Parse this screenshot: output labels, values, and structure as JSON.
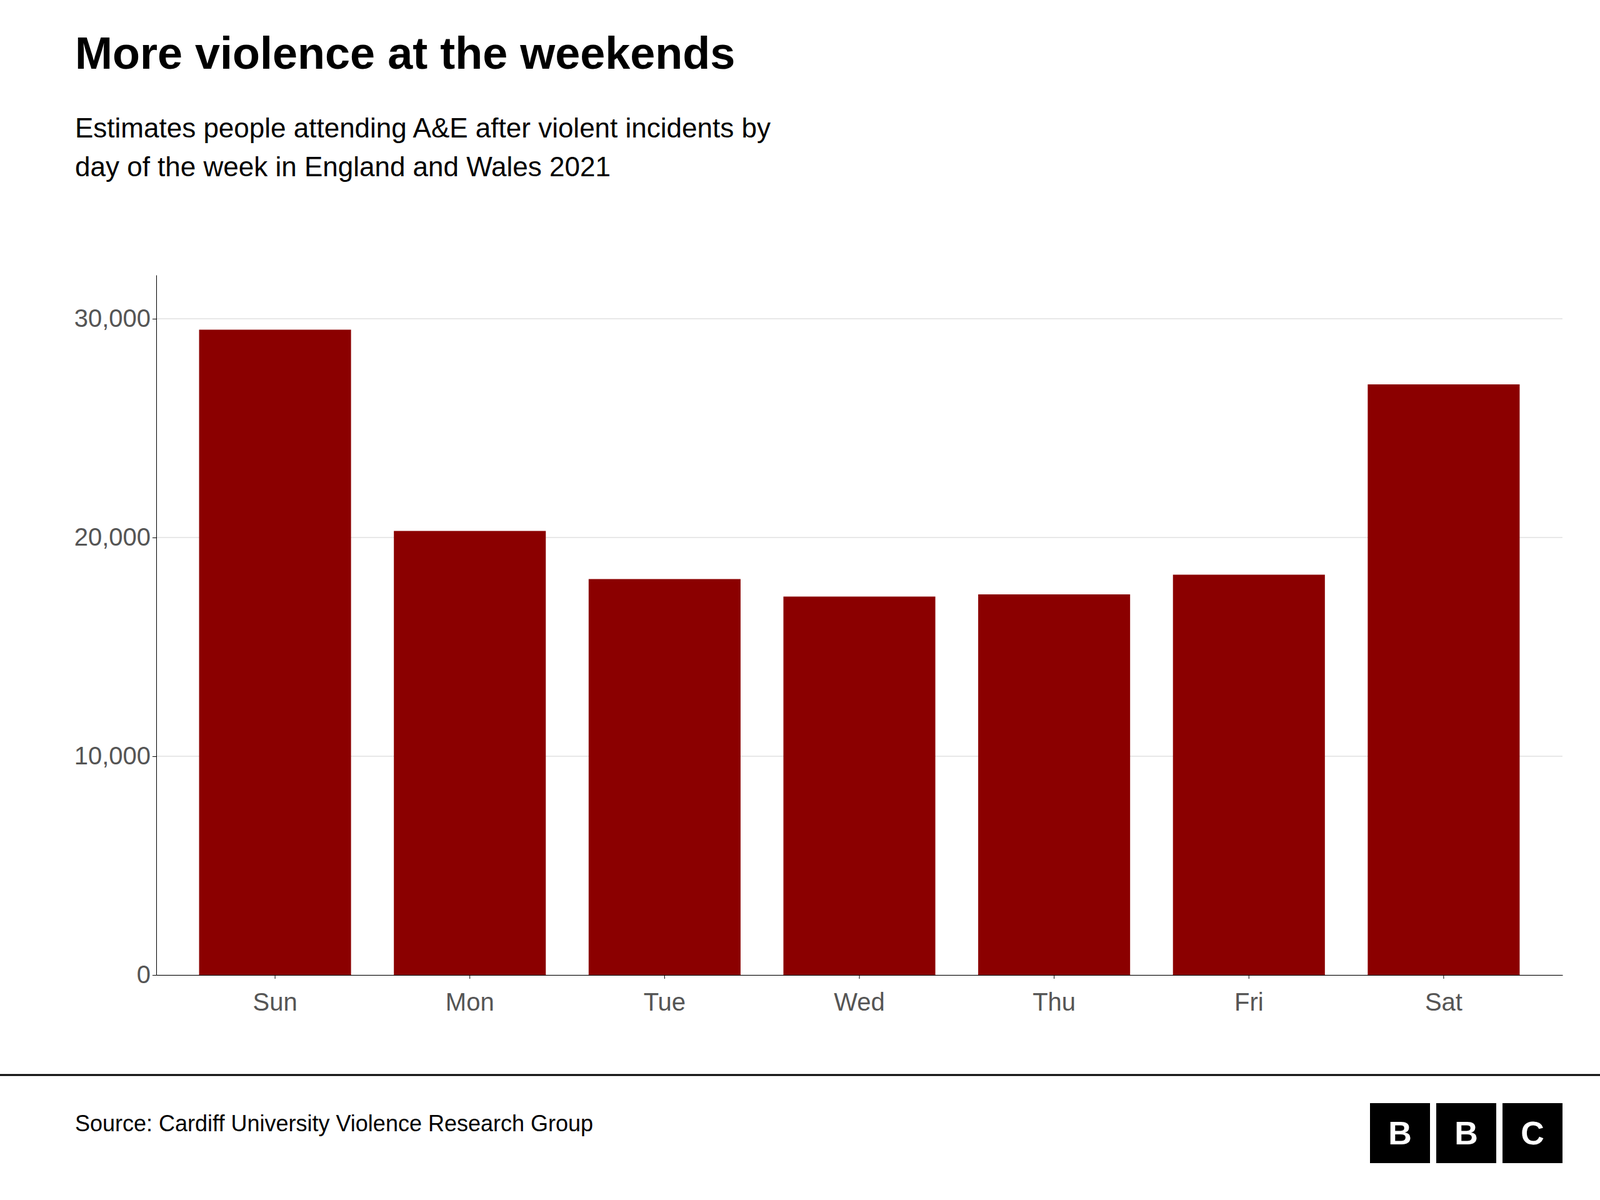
{
  "chart_data": {
    "type": "bar",
    "title": "More violence at the weekends",
    "subtitle": "Estimates people attending A&E after violent incidents by\nday of the week in England and Wales 2021",
    "source": "Source: Cardiff University Violence Research Group",
    "logo": [
      "B",
      "B",
      "C"
    ],
    "categories": [
      "Sun",
      "Mon",
      "Tue",
      "Wed",
      "Thu",
      "Fri",
      "Sat"
    ],
    "values": [
      29500,
      20300,
      18100,
      17300,
      17400,
      18300,
      27000
    ],
    "color": "#8B0000",
    "ylim": [
      0,
      32000
    ],
    "yticks": [
      0,
      {
        "value": 10000,
        "label": "10,000"
      },
      {
        "value": 20000,
        "label": "20,000"
      },
      {
        "value": 30000,
        "label": "30,000"
      }
    ],
    "grid": true
  }
}
